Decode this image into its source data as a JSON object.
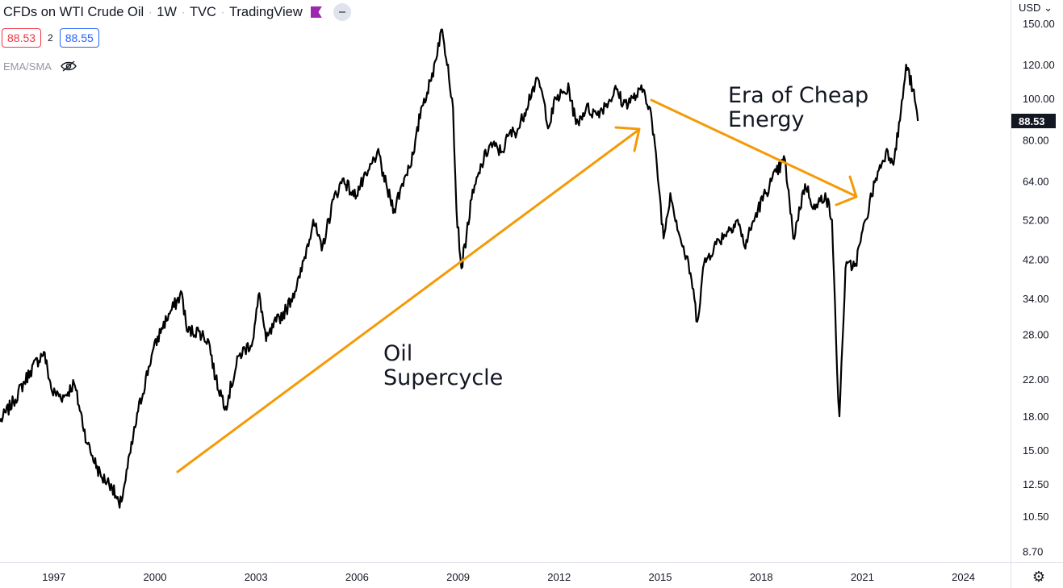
{
  "header": {
    "symbol": "CFDs on WTI Crude Oil",
    "interval": "1W",
    "source": "TVC",
    "platform": "TradingView",
    "separator": "·",
    "bid": "88.53",
    "spread": "2",
    "ask": "88.55",
    "indicator_label": "EMA/SMA"
  },
  "currency_label": "USD",
  "colors": {
    "price_line": "#000000",
    "annotation": "#f59a06",
    "bid": "#f23645",
    "ask": "#2962ff"
  },
  "icons": {
    "visibility": "eye-off-icon",
    "settings": "gear-icon",
    "currency_dropdown": "chevron-down-icon"
  },
  "chart_data": {
    "type": "line",
    "title": "CFDs on WTI Crude Oil · 1W · TVC · TradingView",
    "y_scale": "log",
    "ylim": [
      8.2,
      170
    ],
    "xlim": [
      1995.4,
      2025.4
    ],
    "y_ticks": [
      "150.00",
      "120.00",
      "100.00",
      "80.00",
      "64.00",
      "52.00",
      "42.00",
      "34.00",
      "28.00",
      "22.00",
      "18.00",
      "15.00",
      "12.50",
      "10.50",
      "8.70"
    ],
    "x_ticks": [
      "1997",
      "2000",
      "2003",
      "2006",
      "2009",
      "2012",
      "2015",
      "2018",
      "2021",
      "2024"
    ],
    "last_price_label": "88.53",
    "series": [
      {
        "x": [
          1995.4,
          1995.8,
          1996.3,
          1996.7,
          1996.95,
          1997.3,
          1997.6,
          1998.0,
          1998.4,
          1998.7,
          1998.95,
          1999.1,
          1999.5,
          1999.9,
          2000.2,
          2000.5,
          2000.8,
          2000.95,
          2001.3,
          2001.6,
          2001.8,
          2002.1,
          2002.5,
          2002.9,
          2003.1,
          2003.3,
          2003.6,
          2003.9,
          2004.3,
          2004.7,
          2004.95,
          2005.3,
          2005.6,
          2005.9,
          2006.3,
          2006.6,
          2006.9,
          2007.1,
          2007.4,
          2007.7,
          2007.9,
          2008.2,
          2008.5,
          2008.7,
          2008.85,
          2008.95,
          2009.1,
          2009.4,
          2009.7,
          2009.95,
          2010.3,
          2010.5,
          2010.8,
          2011.2,
          2011.4,
          2011.7,
          2011.9,
          2012.3,
          2012.5,
          2012.8,
          2013.1,
          2013.4,
          2013.7,
          2013.9,
          2014.2,
          2014.5,
          2014.7,
          2014.9,
          2015.1,
          2015.3,
          2015.6,
          2015.9,
          2016.1,
          2016.3,
          2016.6,
          2016.9,
          2017.3,
          2017.5,
          2017.9,
          2018.3,
          2018.7,
          2018.95,
          2019.3,
          2019.6,
          2019.9,
          2020.1,
          2020.25,
          2020.32,
          2020.5,
          2020.8,
          2021.1,
          2021.4,
          2021.7,
          2021.95,
          2022.2,
          2022.3,
          2022.5,
          2022.65
        ],
        "y": [
          17.5,
          19.5,
          23.0,
          25.5,
          20.5,
          20.0,
          21.5,
          15.5,
          13.0,
          12.5,
          11.0,
          12.5,
          18.5,
          25.0,
          29.0,
          32.0,
          35.0,
          28.5,
          28.5,
          27.0,
          22.0,
          19.0,
          25.0,
          27.0,
          35.0,
          27.0,
          30.0,
          32.0,
          38.0,
          52.0,
          44.0,
          58.0,
          65.0,
          59.0,
          66.0,
          75.0,
          61.0,
          55.0,
          65.0,
          75.0,
          95.0,
          110.0,
          145.0,
          120.0,
          95.0,
          55.0,
          40.0,
          58.0,
          70.0,
          78.0,
          75.0,
          82.0,
          85.0,
          105.0,
          110.0,
          86.0,
          100.0,
          105.0,
          87.0,
          95.0,
          92.0,
          97.0,
          105.0,
          97.0,
          100.0,
          105.0,
          95.0,
          70.0,
          47.0,
          60.0,
          47.0,
          39.0,
          30.0,
          41.0,
          45.0,
          48.0,
          52.0,
          45.0,
          55.0,
          64.0,
          72.0,
          47.0,
          63.0,
          55.0,
          60.0,
          52.0,
          23.0,
          18.0,
          40.0,
          41.0,
          52.0,
          65.0,
          75.0,
          72.0,
          100.0,
          120.0,
          105.0,
          88.53
        ]
      }
    ],
    "annotations": [
      {
        "text_lines": [
          "Oil",
          "Supercycle"
        ]
      },
      {
        "text_lines": [
          "Era of Cheap",
          "Energy"
        ]
      }
    ]
  }
}
